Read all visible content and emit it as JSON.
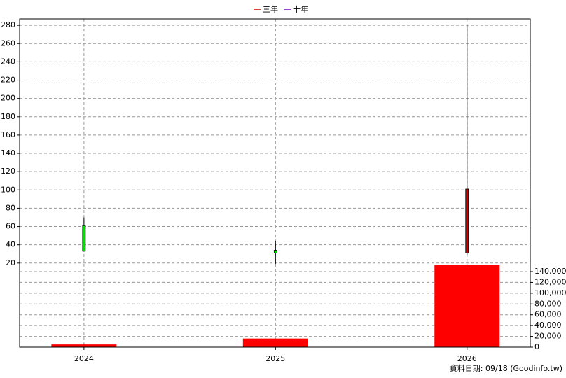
{
  "chart_data": {
    "type": "candlestick",
    "legend": [
      {
        "name": "三年",
        "color": "#d40000"
      },
      {
        "name": "十年",
        "color": "#7000c0"
      }
    ],
    "x": [
      2024,
      2025,
      2026
    ],
    "xlim": [
      2023.664,
      2026.33
    ],
    "xticks": [
      2024,
      2025,
      2026
    ],
    "open": [
      61,
      34,
      31
    ],
    "high": [
      70,
      44,
      281
    ],
    "low": [
      33,
      19,
      28
    ],
    "close": [
      33,
      31,
      101
    ],
    "up_color": "#c80000",
    "down_color": "#00e000",
    "ylim": [
      -72,
      287
    ],
    "yticks": [
      20,
      40,
      60,
      80,
      100,
      120,
      140,
      160,
      180,
      200,
      220,
      240,
      260,
      280
    ],
    "volume": {
      "values": [
        5000,
        16000,
        152000
      ],
      "color": "#ff0000",
      "axis": "y2"
    },
    "y2lim": [
      0,
      608000
    ],
    "y2ticks": [
      0,
      {
        "value": 20000,
        "label": "20,000"
      },
      {
        "value": 40000,
        "label": "40,000"
      },
      {
        "value": 60000,
        "label": "60,000"
      },
      {
        "value": 80000,
        "label": "80,000"
      },
      {
        "value": 100000,
        "label": "100,000"
      },
      {
        "value": 120000,
        "label": "120,000"
      },
      {
        "value": 140000,
        "label": "140,000"
      }
    ],
    "grid": true,
    "footnote": "資料日期: 09/18  (Goodinfo.tw)"
  }
}
